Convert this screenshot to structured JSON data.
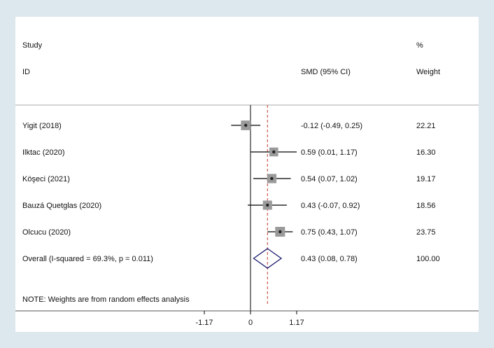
{
  "chart_data": {
    "type": "forest",
    "header": {
      "study_top": "Study",
      "study_bottom": "ID",
      "effect_label": "SMD (95% CI)",
      "weight_top": "%",
      "weight_bottom": "Weight"
    },
    "studies": [
      {
        "name": "Yigit (2018)",
        "smd": -0.12,
        "ci_low": -0.49,
        "ci_high": 0.25,
        "ci_text": "-0.12 (-0.49, 0.25)",
        "weight": 22.21,
        "weight_text": "22.21"
      },
      {
        "name": "Ilktac (2020)",
        "smd": 0.59,
        "ci_low": 0.01,
        "ci_high": 1.17,
        "ci_text": "0.59 (0.01, 1.17)",
        "weight": 16.3,
        "weight_text": "16.30"
      },
      {
        "name": "Köşeci (2021)",
        "smd": 0.54,
        "ci_low": 0.07,
        "ci_high": 1.02,
        "ci_text": "0.54 (0.07, 1.02)",
        "weight": 19.17,
        "weight_text": "19.17"
      },
      {
        "name": "Bauzá Quetglas (2020)",
        "smd": 0.43,
        "ci_low": -0.07,
        "ci_high": 0.92,
        "ci_text": "0.43 (-0.07, 0.92)",
        "weight": 18.56,
        "weight_text": "18.56"
      },
      {
        "name": "Olcucu (2020)",
        "smd": 0.75,
        "ci_low": 0.43,
        "ci_high": 1.07,
        "ci_text": "0.75 (0.43, 1.07)",
        "weight": 23.75,
        "weight_text": "23.75"
      }
    ],
    "overall": {
      "name": "Overall  (I-squared = 69.3%, p = 0.011)",
      "smd": 0.43,
      "ci_low": 0.08,
      "ci_high": 0.78,
      "ci_text": "0.43 (0.08, 0.78)",
      "weight_text": "100.00"
    },
    "note": "NOTE: Weights are from random effects analysis",
    "x_ticks": [
      {
        "value": -1.17,
        "label": "-1.17"
      },
      {
        "value": 0,
        "label": "0"
      },
      {
        "value": 1.17,
        "label": "1.17"
      }
    ],
    "xlim": [
      -1.17,
      1.17
    ],
    "null_line": 0,
    "colors": {
      "background": "#dde7ee",
      "panel": "#ffffff",
      "line": "#000000",
      "overall_line": "#c0392b",
      "diamond": "#1a1a6e",
      "weight_box": "#9a9a9a",
      "separator": "#aaaaaa"
    }
  }
}
